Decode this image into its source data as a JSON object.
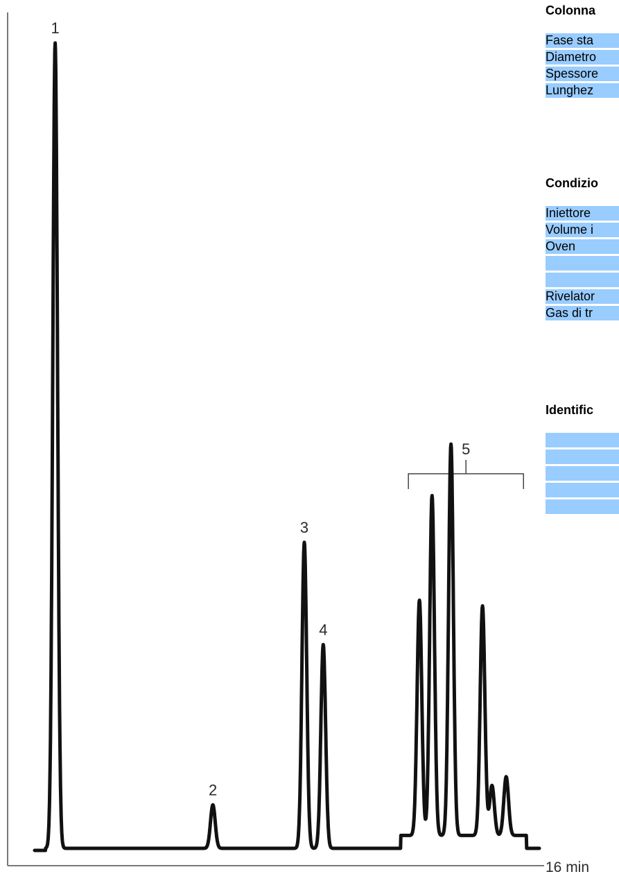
{
  "chart_data": {
    "type": "line",
    "title": "",
    "xlabel": "16 min",
    "ylabel": "",
    "xlim": [
      0,
      16
    ],
    "ylim": [
      0,
      100
    ],
    "grid": false,
    "baseline": 0,
    "peaks": [
      {
        "label": "1",
        "rt": 0.65,
        "height": 100
      },
      {
        "label": "2",
        "rt": 5.65,
        "height": 5.4
      },
      {
        "label": "3",
        "rt": 8.55,
        "height": 38.0
      },
      {
        "label": "4",
        "rt": 9.15,
        "height": 25.3
      },
      {
        "label": "5",
        "rt": 12.2,
        "height": 29.2,
        "group": "5"
      },
      {
        "label": "5",
        "rt": 12.6,
        "height": 42.2,
        "group": "5"
      },
      {
        "label": "5",
        "rt": 13.2,
        "height": 48.6,
        "group": "5"
      },
      {
        "label": "5",
        "rt": 14.2,
        "height": 28.5,
        "group": "5"
      },
      {
        "label": "5",
        "rt": 14.5,
        "height": 6.2,
        "group": "5"
      },
      {
        "label": "5",
        "rt": 14.95,
        "height": 7.3,
        "group": "5"
      }
    ],
    "group_bracket": {
      "label": "5",
      "x_start": 11.85,
      "x_end": 15.5
    }
  },
  "panels": {
    "colonna": {
      "title": "Colonna",
      "rows": [
        "Fase sta",
        "Diametro",
        "Spessore",
        "Lunghez"
      ]
    },
    "condizioni": {
      "title": "Condizio",
      "rows": [
        "Iniettore",
        "Volume i",
        "Oven",
        "",
        "",
        "Rivelator",
        "Gas di tr"
      ]
    },
    "identificazione": {
      "title": "Identific",
      "rows": [
        "",
        "",
        "",
        "",
        ""
      ]
    }
  },
  "colors": {
    "row_fill": "#99ccff",
    "trace": "#111111",
    "axis": "#777777"
  }
}
